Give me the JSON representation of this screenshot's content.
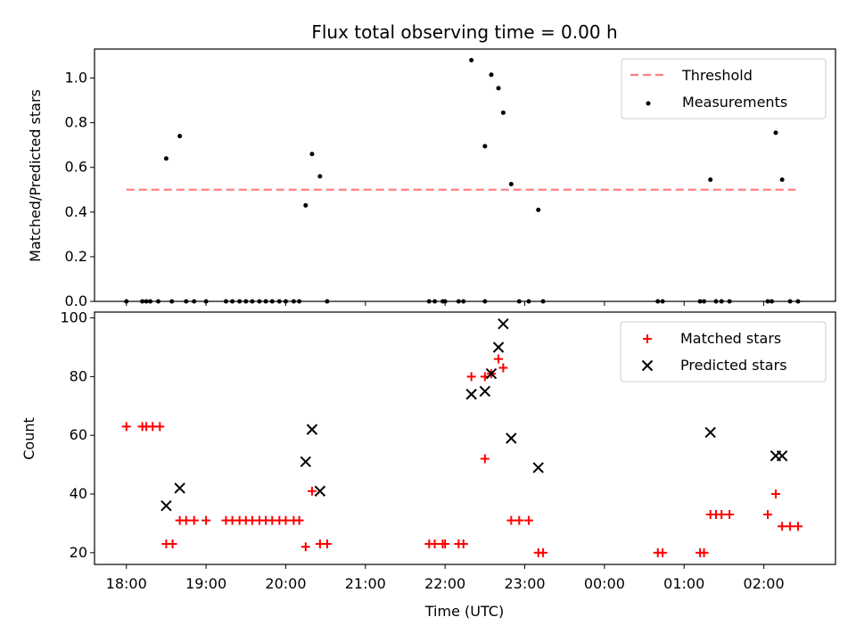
{
  "chart_data": [
    {
      "type": "scatter",
      "title": "Flux total observing time = 0.00 h",
      "xlabel": "",
      "ylabel": "Matched/Predicted stars",
      "xlim": [
        17.6,
        26.9
      ],
      "ylim": [
        0,
        1.13
      ],
      "yticks": [
        0.0,
        0.2,
        0.4,
        0.6,
        0.8,
        1.0
      ],
      "ytick_labels": [
        "0.0",
        "0.2",
        "0.4",
        "0.6",
        "0.8",
        "1.0"
      ],
      "legend_position": "top-right",
      "threshold": {
        "name": "Threshold",
        "color": "#ff8080",
        "x": [
          18.0,
          26.4
        ],
        "y": 0.5
      },
      "series": [
        {
          "name": "Measurements",
          "color": "#000000",
          "points": [
            [
              18.0,
              0
            ],
            [
              18.2,
              0
            ],
            [
              18.25,
              0
            ],
            [
              18.3,
              0
            ],
            [
              18.4,
              0
            ],
            [
              18.5,
              0.64
            ],
            [
              18.57,
              0
            ],
            [
              18.67,
              0.74
            ],
            [
              18.75,
              0
            ],
            [
              18.85,
              0
            ],
            [
              19.0,
              0
            ],
            [
              19.25,
              0
            ],
            [
              19.33,
              0
            ],
            [
              19.42,
              0
            ],
            [
              19.5,
              0
            ],
            [
              19.58,
              0
            ],
            [
              19.67,
              0
            ],
            [
              19.75,
              0
            ],
            [
              19.83,
              0
            ],
            [
              19.92,
              0
            ],
            [
              20.0,
              0
            ],
            [
              20.1,
              0
            ],
            [
              20.17,
              0
            ],
            [
              20.25,
              0.43
            ],
            [
              20.33,
              0.66
            ],
            [
              20.43,
              0.56
            ],
            [
              20.52,
              0
            ],
            [
              21.8,
              0
            ],
            [
              21.87,
              0
            ],
            [
              21.97,
              0
            ],
            [
              22.0,
              0
            ],
            [
              22.17,
              0
            ],
            [
              22.23,
              0
            ],
            [
              22.33,
              1.08
            ],
            [
              22.5,
              0.695
            ],
            [
              22.58,
              1.015
            ],
            [
              22.67,
              0.955
            ],
            [
              22.73,
              0.845
            ],
            [
              22.83,
              0.525
            ],
            [
              22.5,
              0
            ],
            [
              22.93,
              0
            ],
            [
              23.05,
              0
            ],
            [
              23.17,
              0.41
            ],
            [
              23.23,
              0
            ],
            [
              24.67,
              0
            ],
            [
              24.73,
              0
            ],
            [
              25.2,
              0
            ],
            [
              25.25,
              0
            ],
            [
              25.33,
              0.545
            ],
            [
              25.4,
              0
            ],
            [
              25.47,
              0
            ],
            [
              25.57,
              0
            ],
            [
              26.05,
              0
            ],
            [
              26.1,
              0
            ],
            [
              26.15,
              0.755
            ],
            [
              26.23,
              0.545
            ],
            [
              26.33,
              0
            ],
            [
              26.43,
              0
            ]
          ]
        }
      ]
    },
    {
      "type": "scatter",
      "title": "",
      "xlabel": "Time (UTC)",
      "ylabel": "Count",
      "xlim": [
        17.6,
        26.9
      ],
      "ylim": [
        16,
        102
      ],
      "yticks": [
        20,
        40,
        60,
        80,
        100
      ],
      "ytick_labels": [
        "20",
        "40",
        "60",
        "80",
        "100"
      ],
      "xticks": [
        18,
        19,
        20,
        21,
        22,
        23,
        24,
        25,
        26
      ],
      "xtick_labels": [
        "18:00",
        "19:00",
        "20:00",
        "21:00",
        "22:00",
        "23:00",
        "00:00",
        "01:00",
        "02:00"
      ],
      "legend_position": "top-right",
      "series": [
        {
          "name": "Matched stars",
          "marker": "plus",
          "color": "#ff0000",
          "points": [
            [
              18.0,
              63
            ],
            [
              18.2,
              63
            ],
            [
              18.25,
              63
            ],
            [
              18.33,
              63
            ],
            [
              18.42,
              63
            ],
            [
              18.5,
              23
            ],
            [
              18.58,
              23
            ],
            [
              18.67,
              31
            ],
            [
              18.75,
              31
            ],
            [
              18.85,
              31
            ],
            [
              19.0,
              31
            ],
            [
              19.25,
              31
            ],
            [
              19.33,
              31
            ],
            [
              19.42,
              31
            ],
            [
              19.5,
              31
            ],
            [
              19.58,
              31
            ],
            [
              19.67,
              31
            ],
            [
              19.75,
              31
            ],
            [
              19.83,
              31
            ],
            [
              19.92,
              31
            ],
            [
              20.0,
              31
            ],
            [
              20.1,
              31
            ],
            [
              20.17,
              31
            ],
            [
              20.25,
              22
            ],
            [
              20.33,
              41
            ],
            [
              20.43,
              23
            ],
            [
              20.52,
              23
            ],
            [
              21.8,
              23
            ],
            [
              21.87,
              23
            ],
            [
              21.97,
              23
            ],
            [
              22.0,
              23
            ],
            [
              22.17,
              23
            ],
            [
              22.23,
              23
            ],
            [
              22.33,
              80
            ],
            [
              22.5,
              80
            ],
            [
              22.5,
              52
            ],
            [
              22.58,
              81
            ],
            [
              22.67,
              86
            ],
            [
              22.73,
              83
            ],
            [
              22.83,
              31
            ],
            [
              22.93,
              31
            ],
            [
              23.05,
              31
            ],
            [
              23.17,
              20
            ],
            [
              23.23,
              20
            ],
            [
              24.67,
              20
            ],
            [
              24.73,
              20
            ],
            [
              25.2,
              20
            ],
            [
              25.25,
              20
            ],
            [
              25.33,
              33
            ],
            [
              25.4,
              33
            ],
            [
              25.47,
              33
            ],
            [
              25.57,
              33
            ],
            [
              26.05,
              33
            ],
            [
              26.15,
              40
            ],
            [
              26.23,
              29
            ],
            [
              26.33,
              29
            ],
            [
              26.43,
              29
            ]
          ]
        },
        {
          "name": "Predicted stars",
          "marker": "x",
          "color": "#000000",
          "points": [
            [
              18.5,
              36
            ],
            [
              18.67,
              42
            ],
            [
              20.25,
              51
            ],
            [
              20.33,
              62
            ],
            [
              20.43,
              41
            ],
            [
              22.33,
              74
            ],
            [
              22.5,
              75
            ],
            [
              22.58,
              81
            ],
            [
              22.67,
              90
            ],
            [
              22.73,
              98
            ],
            [
              22.83,
              59
            ],
            [
              23.17,
              49
            ],
            [
              25.33,
              61
            ],
            [
              26.15,
              53
            ],
            [
              26.23,
              53
            ]
          ]
        }
      ]
    }
  ]
}
